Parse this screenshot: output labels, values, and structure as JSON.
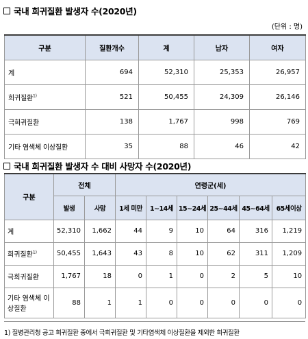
{
  "table1": {
    "title": "국내 희귀질환 발생자 수(2020년)",
    "unit": "(단위 : 명)",
    "headers": [
      "구분",
      "질환개수",
      "계",
      "남자",
      "여자"
    ],
    "rows": [
      {
        "label": "계",
        "sup": "",
        "values": [
          "694",
          "52,310",
          "25,353",
          "26,957"
        ]
      },
      {
        "label": "희귀질환",
        "sup": "1)",
        "values": [
          "521",
          "50,455",
          "24,309",
          "26,146"
        ]
      },
      {
        "label": "극희귀질환",
        "sup": "",
        "values": [
          "138",
          "1,767",
          "998",
          "769"
        ]
      },
      {
        "label": "기타 염색체 이상질환",
        "sup": "",
        "values": [
          "35",
          "88",
          "46",
          "42"
        ]
      }
    ]
  },
  "table2": {
    "title": "국내 희귀질환 발생자 수 대비 사망자 수(2020년)",
    "header_group": {
      "category": "구분",
      "total": "전체",
      "age_group": "연령군(세)"
    },
    "subheaders": [
      "발생",
      "사망",
      "1세 미만",
      "1~14세",
      "15~24세",
      "25~44세",
      "45~64세",
      "65세이상"
    ],
    "rows": [
      {
        "label": "계",
        "sup": "",
        "values": [
          "52,310",
          "1,662",
          "44",
          "9",
          "10",
          "64",
          "316",
          "1,219"
        ]
      },
      {
        "label": "희귀질환",
        "sup": "1)",
        "values": [
          "50,455",
          "1,643",
          "43",
          "8",
          "10",
          "62",
          "311",
          "1,209"
        ]
      },
      {
        "label": "극희귀질환",
        "sup": "",
        "values": [
          "1,767",
          "18",
          "0",
          "1",
          "0",
          "2",
          "5",
          "10"
        ]
      },
      {
        "label": "기타 염색체 이상질환",
        "sup": "",
        "values": [
          "88",
          "1",
          "1",
          "0",
          "0",
          "0",
          "0",
          "0"
        ]
      }
    ]
  },
  "footnote": "1) 질병관리청 공고 희귀질환 중에서 극희귀질환 및 기타염색체 이상질환을 제외한 희귀질환"
}
